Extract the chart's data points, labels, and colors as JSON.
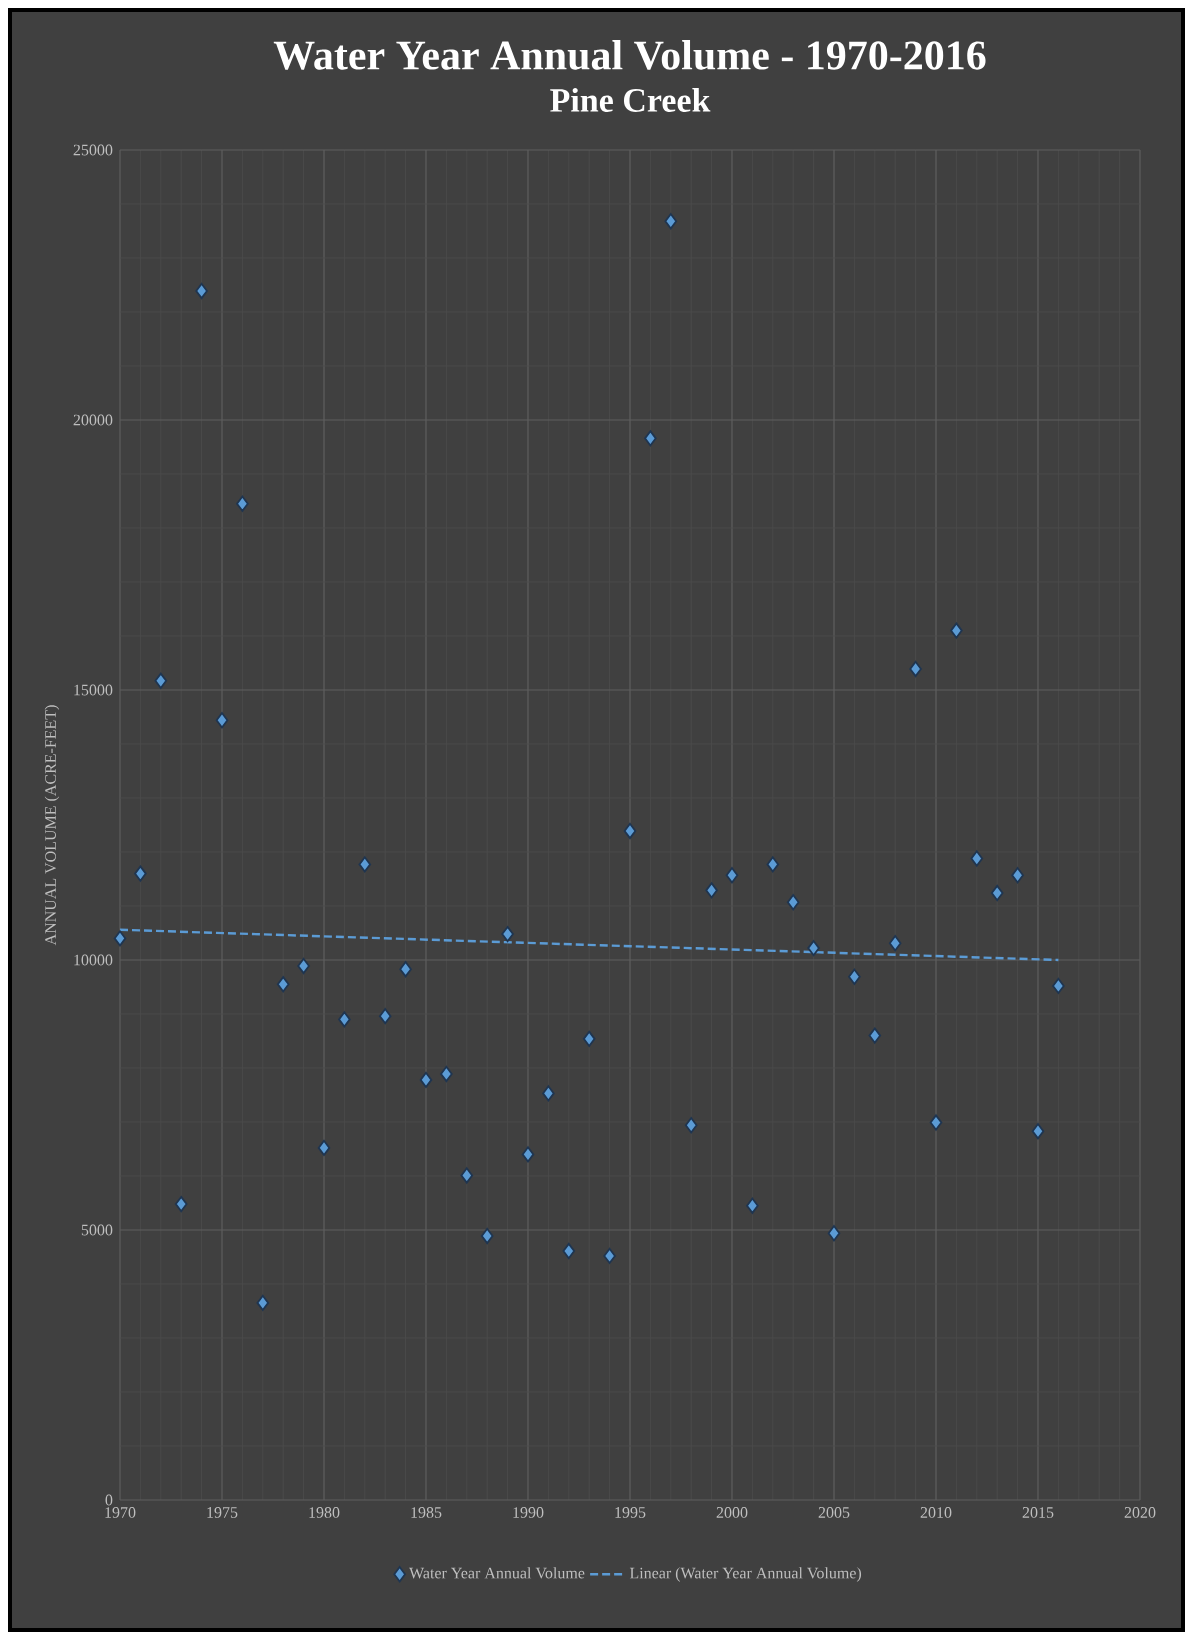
{
  "chart_data": {
    "type": "scatter",
    "title": "Water Year Annual Volume - 1970-2016",
    "subtitle": "Pine Creek",
    "ylabel": "ANNUAL VOLUME (ACRE-FEET)",
    "xlim": [
      1970,
      2020
    ],
    "xticks": [
      1970,
      1975,
      1980,
      1985,
      1990,
      1995,
      2000,
      2005,
      2010,
      2015,
      2020
    ],
    "ylim": [
      0,
      25000
    ],
    "yticks": [
      0,
      5000,
      10000,
      15000,
      20000,
      25000
    ],
    "grid": true,
    "legend": "bottom",
    "series": [
      {
        "name": "Water Year Annual Volume",
        "type": "scatter",
        "color": "#5b9bd5",
        "marker": "diamond",
        "x": [
          1970,
          1971,
          1972,
          1973,
          1974,
          1975,
          1976,
          1977,
          1978,
          1979,
          1980,
          1981,
          1982,
          1983,
          1984,
          1985,
          1986,
          1987,
          1988,
          1989,
          1990,
          1991,
          1992,
          1993,
          1994,
          1995,
          1996,
          1997,
          1998,
          1999,
          2000,
          2001,
          2002,
          2003,
          2004,
          2005,
          2006,
          2007,
          2008,
          2009,
          2010,
          2011,
          2012,
          2013,
          2014,
          2015,
          2016
        ],
        "values": [
          10400,
          11600,
          15170,
          5480,
          22390,
          14440,
          18450,
          3650,
          9550,
          9890,
          6520,
          8900,
          11770,
          8960,
          9830,
          7780,
          7890,
          6010,
          4890,
          10480,
          6400,
          7530,
          4610,
          8540,
          4520,
          12390,
          19660,
          23680,
          6940,
          11290,
          11570,
          5450,
          11770,
          11070,
          10220,
          4940,
          9690,
          8600,
          10310,
          15390,
          6990,
          16100,
          11880,
          11240,
          11570,
          6830,
          9520
        ]
      },
      {
        "name": "Linear (Water Year Annual Volume)",
        "type": "line",
        "color": "#5b9bd5",
        "marker": "none",
        "line_style": "dashed",
        "x": [
          1970,
          2016
        ],
        "values": [
          10560,
          10000
        ]
      }
    ]
  }
}
